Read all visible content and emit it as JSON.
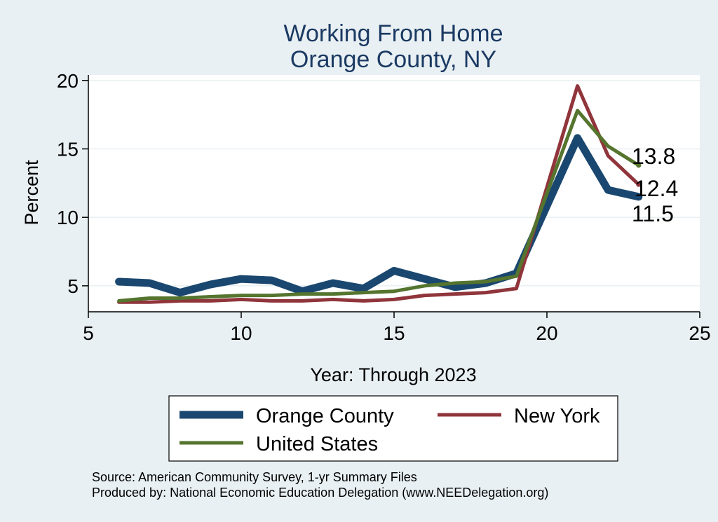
{
  "chart_data": {
    "type": "line",
    "title": [
      "Working From Home",
      "Orange County, NY"
    ],
    "xlabel": "Year: Through 2023",
    "ylabel": "Percent",
    "xlim": [
      5,
      25
    ],
    "ylim": [
      3.1,
      20.4
    ],
    "xticks": [
      5,
      10,
      15,
      20,
      25
    ],
    "yticks": [
      5,
      10,
      15,
      20
    ],
    "grid": true,
    "legend_position": "bottom",
    "series": [
      {
        "name": "Orange County",
        "color": "#1a476f",
        "x": [
          6,
          7,
          8,
          9,
          10,
          11,
          12,
          13,
          14,
          15,
          16,
          17,
          18,
          19,
          21,
          22,
          23
        ],
        "values": [
          5.3,
          5.2,
          4.5,
          5.1,
          5.5,
          5.4,
          4.6,
          5.2,
          4.8,
          6.1,
          5.5,
          4.9,
          5.2,
          5.9,
          15.8,
          12.0,
          11.5
        ],
        "end_label": "11.5"
      },
      {
        "name": "New York",
        "color": "#90353b",
        "x": [
          6,
          7,
          8,
          9,
          10,
          11,
          12,
          13,
          14,
          15,
          16,
          17,
          18,
          19,
          21,
          22,
          23
        ],
        "values": [
          3.8,
          3.8,
          3.9,
          3.9,
          4.0,
          3.9,
          3.9,
          4.0,
          3.9,
          4.0,
          4.3,
          4.4,
          4.5,
          4.8,
          19.6,
          14.5,
          12.4
        ],
        "end_label": "12.4"
      },
      {
        "name": "United States",
        "color": "#55752f",
        "x": [
          6,
          7,
          8,
          9,
          10,
          11,
          12,
          13,
          14,
          15,
          16,
          17,
          18,
          19,
          21,
          22,
          23
        ],
        "values": [
          3.9,
          4.1,
          4.1,
          4.2,
          4.3,
          4.3,
          4.4,
          4.4,
          4.5,
          4.6,
          5.0,
          5.2,
          5.3,
          5.7,
          17.8,
          15.2,
          13.8
        ],
        "end_label": "13.8"
      }
    ],
    "legend": [
      "Orange County",
      "New York",
      "United States"
    ],
    "source_lines": [
      "Source: American Community Survey, 1-yr Summary Files",
      "Produced by: National Economic Education Delegation (www.NEEDelegation.org)"
    ]
  }
}
